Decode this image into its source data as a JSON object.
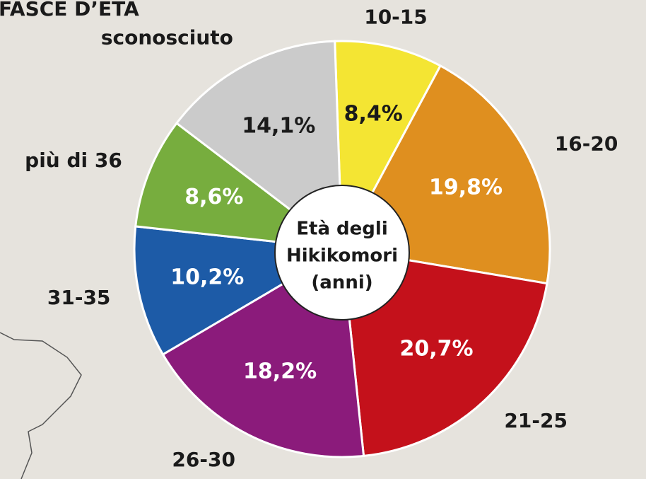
{
  "chart_data": {
    "type": "donut",
    "title": "FASCE D’ETÀ",
    "center_label": [
      "Età degli",
      "Hikikomori",
      "(anni)"
    ],
    "categories": [
      "10-15",
      "16-20",
      "21-25",
      "26-30",
      "31-35",
      "più di 36",
      "sconosciuto"
    ],
    "values": [
      8.4,
      19.8,
      20.7,
      18.2,
      10.2,
      8.6,
      14.1
    ],
    "value_labels": [
      "8,4%",
      "19,8%",
      "20,7%",
      "18,2%",
      "10,2%",
      "8,6%",
      "14,1%"
    ],
    "colors": [
      "#f4e533",
      "#df8f1f",
      "#c4111b",
      "#8b1b7b",
      "#1d5ba7",
      "#77ad3e",
      "#cbcbcb"
    ],
    "value_label_colors": [
      "#1a1a1a",
      "#ffffff",
      "#ffffff",
      "#ffffff",
      "#ffffff",
      "#ffffff",
      "#1a1a1a"
    ]
  }
}
